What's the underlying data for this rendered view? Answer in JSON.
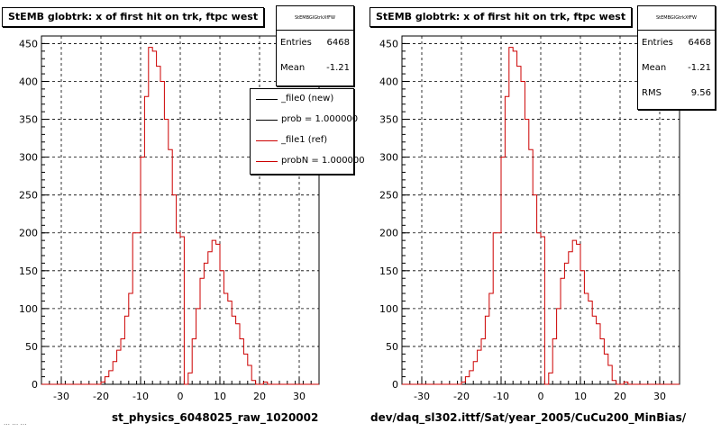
{
  "colors": {
    "ref": "#cc0000",
    "new": "#000000",
    "grid": "#000000"
  },
  "footer": "… … …",
  "chart_data": [
    {
      "type": "line",
      "title": "StEMB globtrk: x of first hit on trk, ftpc west",
      "xlabel": "st_physics_6048025_raw_1020002",
      "ylabel": "",
      "xlim": [
        -35,
        35
      ],
      "ylim": [
        0,
        460
      ],
      "xticks": [
        "-30",
        "-20",
        "-10",
        "0",
        "10",
        "20",
        "30"
      ],
      "yticks": [
        "0",
        "50",
        "100",
        "150",
        "200",
        "250",
        "300",
        "350",
        "400",
        "450"
      ],
      "grid": true,
      "stats": {
        "name": "StEMBGlGtrkXfFW",
        "rows": [
          {
            "label": "Entries",
            "value": "6468"
          },
          {
            "label": "Mean",
            "value": "-1.21"
          }
        ]
      },
      "legend": [
        {
          "label": "_file0 (new)",
          "color": "#000000"
        },
        {
          "label": "prob = 1.000000",
          "color": "#000000"
        },
        {
          "label": "_file1 (ref)",
          "color": "#cc0000"
        },
        {
          "label": "probN = 1.000000",
          "color": "#cc0000"
        }
      ],
      "bin_width": 1,
      "x_start": -35,
      "series": [
        {
          "name": "_file1 (ref)",
          "values": [
            0,
            0,
            0,
            0,
            0,
            0,
            0,
            0,
            0,
            0,
            0,
            0,
            0,
            0,
            0,
            3,
            10,
            18,
            30,
            45,
            60,
            90,
            120,
            200,
            200,
            300,
            380,
            445,
            440,
            420,
            400,
            350,
            310,
            250,
            200,
            195,
            0,
            15,
            60,
            100,
            140,
            160,
            175,
            190,
            185,
            150,
            120,
            110,
            90,
            80,
            60,
            40,
            25,
            5,
            0,
            0,
            3,
            0,
            0,
            0,
            0,
            0,
            0,
            0,
            0,
            0,
            0,
            0,
            0,
            0
          ]
        }
      ]
    },
    {
      "type": "line",
      "title": "StEMB globtrk: x of first hit on trk, ftpc west",
      "xlabel": "dev/daq_sl302.ittf/Sat/year_2005/CuCu200_MinBias/",
      "ylabel": "",
      "xlim": [
        -35,
        35
      ],
      "ylim": [
        0,
        460
      ],
      "xticks": [
        "-30",
        "-20",
        "-10",
        "0",
        "10",
        "20",
        "30"
      ],
      "yticks": [
        "0",
        "50",
        "100",
        "150",
        "200",
        "250",
        "300",
        "350",
        "400",
        "450"
      ],
      "grid": true,
      "stats": {
        "name": "StEMBGlGtrkXfFW",
        "rows": [
          {
            "label": "Entries",
            "value": "6468"
          },
          {
            "label": "Mean",
            "value": "-1.21"
          },
          {
            "label": "RMS",
            "value": "9.56"
          }
        ]
      },
      "legend": [],
      "bin_width": 1,
      "x_start": -35,
      "series": [
        {
          "name": "",
          "values": [
            0,
            0,
            0,
            0,
            0,
            0,
            0,
            0,
            0,
            0,
            0,
            0,
            0,
            0,
            0,
            3,
            10,
            18,
            30,
            45,
            60,
            90,
            120,
            200,
            200,
            300,
            380,
            445,
            440,
            420,
            400,
            350,
            310,
            250,
            200,
            195,
            0,
            15,
            60,
            100,
            140,
            160,
            175,
            190,
            185,
            150,
            120,
            110,
            90,
            80,
            60,
            40,
            25,
            5,
            0,
            0,
            3,
            0,
            0,
            0,
            0,
            0,
            0,
            0,
            0,
            0,
            0,
            0,
            0,
            0
          ]
        }
      ]
    }
  ]
}
